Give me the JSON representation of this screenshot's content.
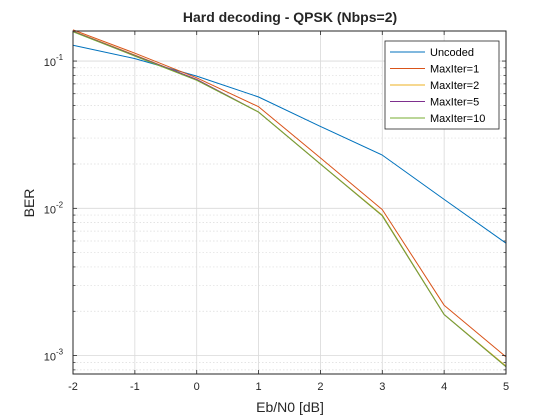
{
  "chart_data": {
    "type": "line",
    "title": "Hard decoding - QPSK (Nbps=2)",
    "xlabel": "Eb/N0 [dB]",
    "ylabel": "BER",
    "x": [
      -2,
      -1,
      0,
      1,
      2,
      3,
      4,
      5
    ],
    "xlim": [
      -2,
      5
    ],
    "ylim": [
      0.00075,
      0.16
    ],
    "yscale": "log",
    "xticks": [
      "-2",
      "-1",
      "0",
      "1",
      "2",
      "3",
      "4",
      "5"
    ],
    "yticks": [
      {
        "value": 0.1,
        "base": "10",
        "exp": "-1"
      },
      {
        "value": 0.01,
        "base": "10",
        "exp": "-2"
      },
      {
        "value": 0.001,
        "base": "10",
        "exp": "-3"
      }
    ],
    "grid": true,
    "legend_position": "top-right",
    "series": [
      {
        "name": "Uncoded",
        "color": "#0072BD",
        "values": [
          0.128,
          0.104,
          0.079,
          0.057,
          0.036,
          0.023,
          0.0115,
          0.0058
        ]
      },
      {
        "name": "MaxIter=1",
        "color": "#D95319",
        "values": [
          0.163,
          0.113,
          0.077,
          0.049,
          0.022,
          0.0098,
          0.0022,
          0.00098
        ]
      },
      {
        "name": "MaxIter=2",
        "color": "#EDB120",
        "values": [
          0.16,
          0.11,
          0.075,
          0.045,
          0.02,
          0.009,
          0.0019,
          0.00085
        ]
      },
      {
        "name": "MaxIter=5",
        "color": "#7E2F8E",
        "values": [
          0.159,
          0.109,
          0.075,
          0.045,
          0.02,
          0.0089,
          0.0019,
          0.00084
        ]
      },
      {
        "name": "MaxIter=10",
        "color": "#77AC30",
        "values": [
          0.158,
          0.108,
          0.074,
          0.045,
          0.02,
          0.0089,
          0.0019,
          0.00084
        ]
      }
    ]
  }
}
